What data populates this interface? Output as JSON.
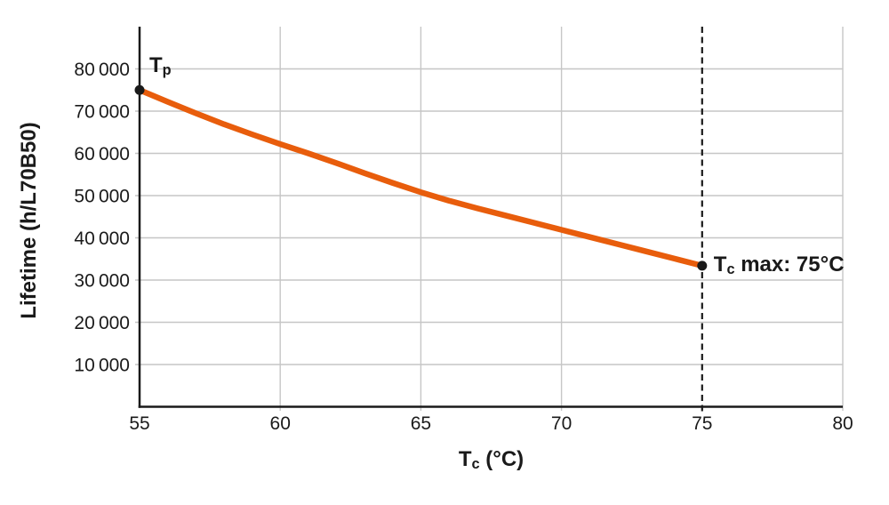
{
  "chart_data": {
    "type": "line",
    "title": "",
    "xlabel": {
      "main": "T",
      "sub": "c",
      "rest": " (°C)"
    },
    "ylabel": "Lifetime (h/L70B50)",
    "xlim": [
      55,
      80
    ],
    "ylim": [
      0,
      90000
    ],
    "grid": true,
    "legend": "none",
    "x_ticks": [
      {
        "value": 55,
        "label": "55"
      },
      {
        "value": 60,
        "label": "60"
      },
      {
        "value": 65,
        "label": "65"
      },
      {
        "value": 70,
        "label": "70"
      },
      {
        "value": 75,
        "label": "75"
      },
      {
        "value": 80,
        "label": "80"
      }
    ],
    "y_ticks": [
      {
        "value": 10000,
        "label": "10 000"
      },
      {
        "value": 20000,
        "label": "20 000"
      },
      {
        "value": 30000,
        "label": "30 000"
      },
      {
        "value": 40000,
        "label": "40 000"
      },
      {
        "value": 50000,
        "label": "50 000"
      },
      {
        "value": 60000,
        "label": "60 000"
      },
      {
        "value": 70000,
        "label": "70 000"
      },
      {
        "value": 80000,
        "label": "80 000"
      }
    ],
    "x_gridline_values": [
      60,
      65,
      70,
      80
    ],
    "vline": {
      "x": 75,
      "style": "dashed",
      "color": "#1a1a1a"
    },
    "series": [
      {
        "name": "lifetime-vs-case-temperature",
        "color": "#e85d0c",
        "stroke_width": 6.5,
        "key_points": [
          [
            55,
            75000
          ],
          [
            60,
            62200
          ],
          [
            65,
            50800
          ],
          [
            70,
            41900
          ],
          [
            75,
            33400
          ]
        ],
        "points": [
          [
            55,
            75000
          ],
          [
            56,
            72200
          ],
          [
            57,
            69500
          ],
          [
            58,
            66900
          ],
          [
            59,
            64500
          ],
          [
            60,
            62200
          ],
          [
            61,
            60000
          ],
          [
            62,
            57700
          ],
          [
            63,
            55300
          ],
          [
            64,
            53000
          ],
          [
            65,
            50800
          ],
          [
            66,
            48800
          ],
          [
            67,
            47000
          ],
          [
            68,
            45300
          ],
          [
            69,
            43600
          ],
          [
            70,
            41900
          ],
          [
            71,
            40200
          ],
          [
            72,
            38500
          ],
          [
            73,
            36800
          ],
          [
            74,
            35100
          ],
          [
            75,
            33400
          ]
        ]
      }
    ],
    "annotations": [
      {
        "name": "tp",
        "x": 55,
        "y": 75000,
        "text": {
          "main": "T",
          "sub": "p",
          "rest": ""
        }
      },
      {
        "name": "tc-max",
        "x": 75,
        "y": 33400,
        "text": {
          "main": "T",
          "sub": "c",
          "rest": " max: 75°C"
        }
      }
    ],
    "colors": {
      "curve": "#e85d0c",
      "axis": "#1a1a1a",
      "grid": "#c6c6c6",
      "marker": "#1a1a1a",
      "background": "#ffffff"
    }
  }
}
